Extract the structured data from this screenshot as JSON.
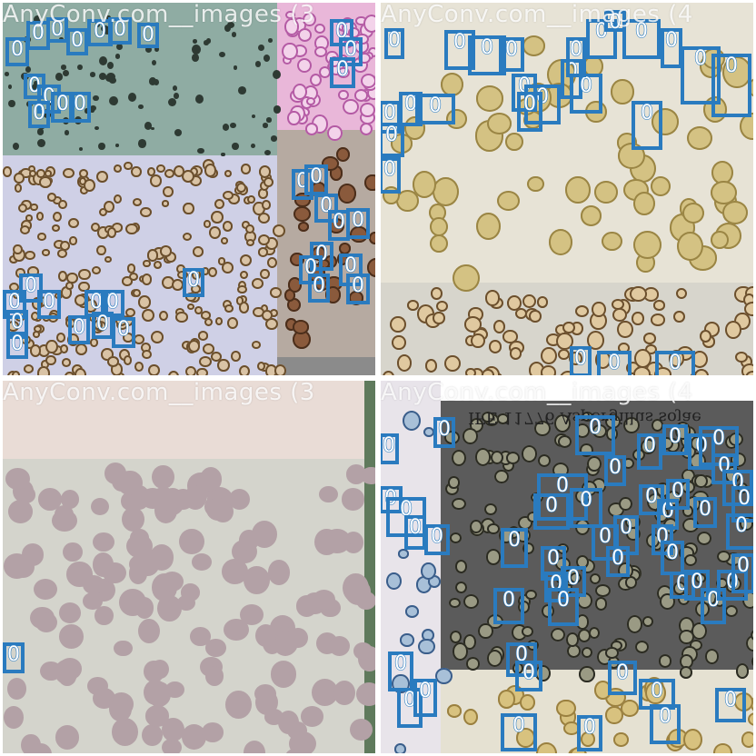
{
  "watermarks": {
    "top_left": "AnyConv.com__images (3",
    "top_right": "AnyConv.com__images (4",
    "bottom_left": "AnyConv.com__images (3",
    "bottom_right": "AnyConv.com__images (4"
  },
  "micrograph_caption": "IFE 11776 Aspergillus sojae",
  "detection_label": "0",
  "box_color": "#2a7bbf",
  "background_colors": {
    "teal_field": "#8faca3",
    "lavender_field": "#cfd0e6",
    "pink_stain": "#e9b7d9",
    "beige_field": "#e7e3d6",
    "pale_field": "#d4d4cc",
    "gray_field": "#5b5b5b"
  }
}
